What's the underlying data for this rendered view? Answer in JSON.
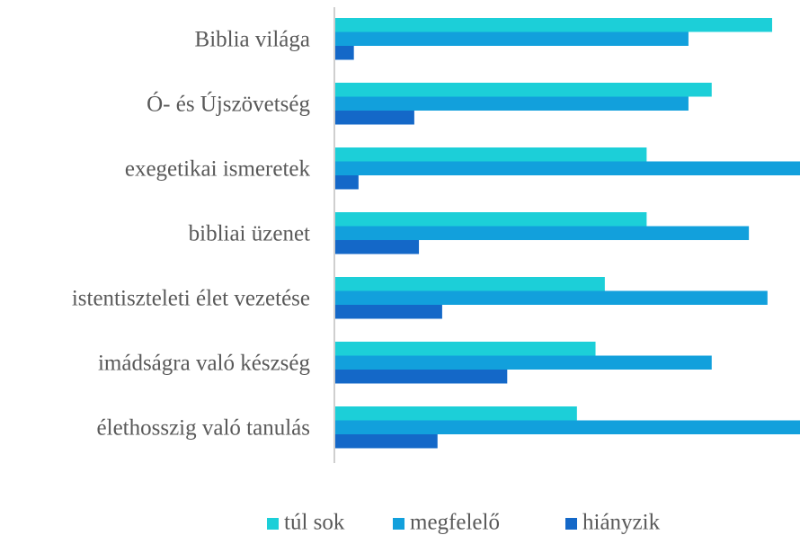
{
  "chart_data": {
    "type": "hbar",
    "categories": [
      "Biblia világa",
      "Ó- és Újszövetség",
      "exegetikai ismeretek",
      "bibliai üzenet",
      "istentiszteleti élet vezetése",
      "imádságra való készség",
      "élethosszig való tanulás"
    ],
    "series": [
      {
        "name": "túl sok",
        "color": "#1ccfd8",
        "values": [
          94,
          81,
          67,
          67,
          58,
          56,
          52
        ]
      },
      {
        "name": "megfelelő",
        "color": "#12a0dc",
        "values": [
          76,
          76,
          100,
          89,
          93,
          81,
          100
        ]
      },
      {
        "name": "hiányzik",
        "color": "#1468c8",
        "values": [
          4,
          17,
          5,
          18,
          23,
          37,
          22
        ]
      }
    ],
    "xlim": [
      0,
      100
    ],
    "legend": "bottom"
  }
}
